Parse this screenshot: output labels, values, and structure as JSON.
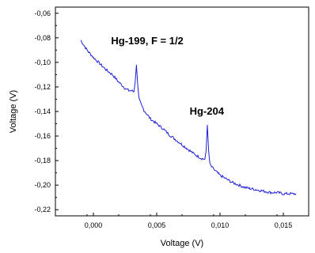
{
  "chart_data": {
    "type": "line",
    "xlabel": "Voltage (V)",
    "ylabel": "Voltage (V)",
    "xlim": [
      -0.003,
      0.017
    ],
    "ylim": [
      -0.225,
      -0.055
    ],
    "xticks": [
      0.0,
      0.005,
      0.01,
      0.015
    ],
    "xtick_labels": [
      "0,000",
      "0,005",
      "0,010",
      "0,015"
    ],
    "yticks": [
      -0.22,
      -0.2,
      -0.18,
      -0.16,
      -0.14,
      -0.12,
      -0.1,
      -0.08,
      -0.06
    ],
    "ytick_labels": [
      "-0,22",
      "-0,20",
      "-0,18",
      "-0,16",
      "-0,14",
      "-0,12",
      "-0,10",
      "-0,08",
      "-0,06"
    ],
    "grid": false,
    "line_color": "#1f1fd6",
    "series": [
      {
        "x": [
          -0.001,
          -0.0005,
          0.0,
          0.0005,
          0.001,
          0.0015,
          0.002,
          0.0025,
          0.0028,
          0.003,
          0.0032,
          0.0033,
          0.0034,
          0.0035,
          0.0036,
          0.0038,
          0.004,
          0.0045,
          0.005,
          0.0055,
          0.006,
          0.0065,
          0.007,
          0.0075,
          0.008,
          0.0085,
          0.0088,
          0.0089,
          0.009,
          0.0091,
          0.0092,
          0.0094,
          0.0096,
          0.01,
          0.0105,
          0.011,
          0.0115,
          0.012,
          0.0125,
          0.013,
          0.0135,
          0.014,
          0.0145,
          0.015,
          0.0155,
          0.016
        ],
        "y": [
          -0.082,
          -0.09,
          -0.096,
          -0.101,
          -0.106,
          -0.11,
          -0.116,
          -0.121,
          -0.123,
          -0.123,
          -0.124,
          -0.116,
          -0.102,
          -0.118,
          -0.13,
          -0.135,
          -0.139,
          -0.146,
          -0.15,
          -0.154,
          -0.159,
          -0.163,
          -0.167,
          -0.171,
          -0.175,
          -0.178,
          -0.179,
          -0.172,
          -0.151,
          -0.172,
          -0.183,
          -0.186,
          -0.188,
          -0.192,
          -0.195,
          -0.198,
          -0.2,
          -0.202,
          -0.203,
          -0.204,
          -0.205,
          -0.206,
          -0.206,
          -0.207,
          -0.207,
          -0.207
        ]
      }
    ],
    "annotations": [
      {
        "text": "Hg-199, F = 1/2",
        "x": 0.0014,
        "y": -0.0853
      },
      {
        "text": "Hg-204",
        "x": 0.0076,
        "y": -0.1427
      }
    ]
  }
}
